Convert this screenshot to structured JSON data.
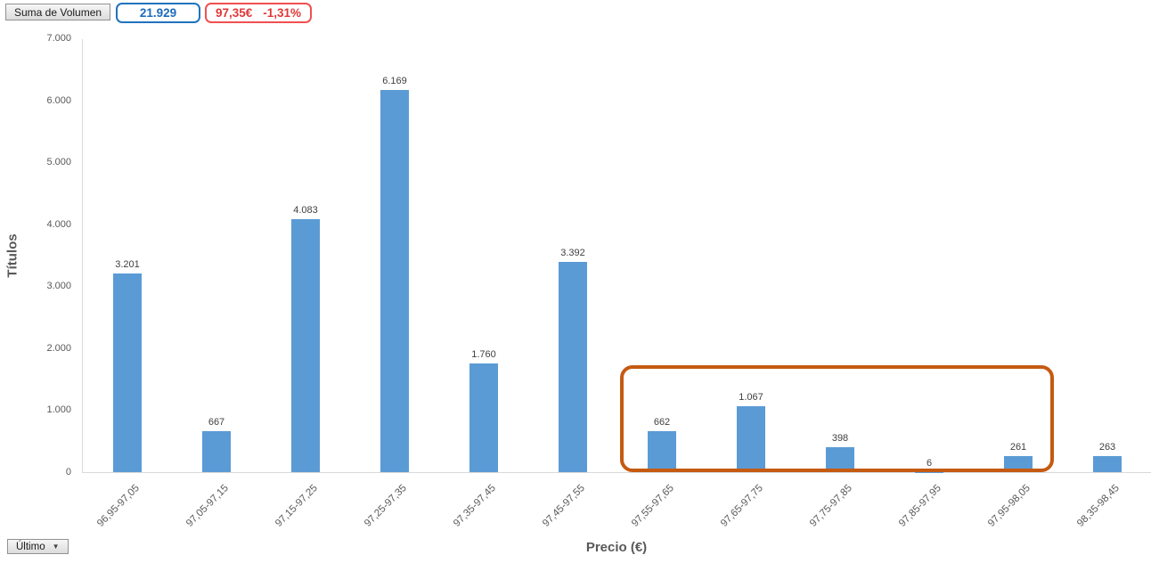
{
  "toolbar": {
    "field_button_label": "Suma de Volumen",
    "filter_button_label": "Último"
  },
  "kpis": {
    "total_volume": "21.929",
    "last_price": "97,35€",
    "change_pct": "-1,31%"
  },
  "colors": {
    "bar": "#5B9BD5",
    "highlight_box": "#C55A11",
    "kpi_blue": "#1B6BBF",
    "kpi_red": "#E03838",
    "axis_line": "#D9D9D9",
    "tick_text": "#595959",
    "data_label_text": "#404040"
  },
  "chart_data": {
    "type": "bar",
    "title": "",
    "xlabel": "Precio (€)",
    "ylabel": "Títulos",
    "categories": [
      "96,95-97,05",
      "97,05-97,15",
      "97,15-97,25",
      "97,25-97,35",
      "97,35-97,45",
      "97,45-97,55",
      "97,55-97,65",
      "97,65-97,75",
      "97,75-97,85",
      "97,85-97,95",
      "97,95-98,05",
      "98,35-98,45"
    ],
    "values": [
      3201,
      667,
      4083,
      6169,
      1760,
      3392,
      662,
      1067,
      398,
      6,
      261,
      263
    ],
    "data_labels": [
      "3.201",
      "667",
      "4.083",
      "6.169",
      "1.760",
      "3.392",
      "662",
      "1.067",
      "398",
      "6",
      "261",
      "263"
    ],
    "ylim": [
      0,
      7000
    ],
    "ytick_step": 1000,
    "ytick_labels": [
      "0",
      "1.000",
      "2.000",
      "3.000",
      "4.000",
      "5.000",
      "6.000",
      "7.000"
    ],
    "grid": false,
    "legend": "none",
    "highlight": {
      "categories": [
        "97,55-97,65",
        "97,65-97,75",
        "97,75-97,85",
        "97,85-97,95",
        "97,95-98,05"
      ],
      "color": "#C55A11"
    }
  }
}
